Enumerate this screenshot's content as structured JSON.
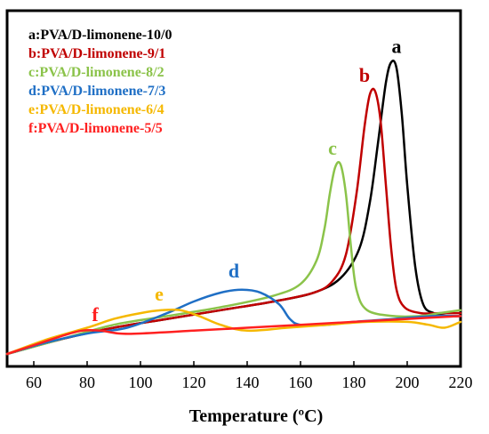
{
  "chart_data": {
    "type": "line",
    "xlabel": "Temperature (ºC)",
    "ylabel": "",
    "xlim": [
      50,
      220
    ],
    "ylim": [
      0,
      1
    ],
    "xticks": [
      60,
      80,
      100,
      120,
      140,
      160,
      180,
      200,
      220
    ],
    "grid": false,
    "legend_position": "top-left",
    "series": [
      {
        "name": "a:PVA/D-limonene-10/0",
        "label": "a",
        "color": "#000000",
        "points": [
          [
            50,
            0.0
          ],
          [
            70,
            0.05
          ],
          [
            90,
            0.09
          ],
          [
            110,
            0.12
          ],
          [
            130,
            0.15
          ],
          [
            150,
            0.18
          ],
          [
            165,
            0.21
          ],
          [
            175,
            0.26
          ],
          [
            182,
            0.36
          ],
          [
            186,
            0.52
          ],
          [
            189,
            0.72
          ],
          [
            192,
            0.93
          ],
          [
            194,
            1.0
          ],
          [
            196,
            0.98
          ],
          [
            198,
            0.82
          ],
          [
            200,
            0.58
          ],
          [
            203,
            0.3
          ],
          [
            206,
            0.17
          ],
          [
            210,
            0.14
          ],
          [
            215,
            0.13
          ],
          [
            220,
            0.13
          ]
        ]
      },
      {
        "name": "b:PVA/D-limonene-9/1",
        "label": "b",
        "color": "#c00000",
        "points": [
          [
            50,
            0.0
          ],
          [
            70,
            0.05
          ],
          [
            90,
            0.09
          ],
          [
            110,
            0.12
          ],
          [
            130,
            0.15
          ],
          [
            150,
            0.18
          ],
          [
            165,
            0.21
          ],
          [
            172,
            0.25
          ],
          [
            177,
            0.34
          ],
          [
            181,
            0.55
          ],
          [
            184,
            0.78
          ],
          [
            186,
            0.89
          ],
          [
            188,
            0.9
          ],
          [
            190,
            0.8
          ],
          [
            192,
            0.58
          ],
          [
            194,
            0.36
          ],
          [
            196,
            0.22
          ],
          [
            199,
            0.16
          ],
          [
            205,
            0.14
          ],
          [
            212,
            0.14
          ],
          [
            220,
            0.14
          ]
        ]
      },
      {
        "name": "c:PVA/D-limonene-8/2",
        "label": "c",
        "color": "#8bc34a",
        "points": [
          [
            50,
            0.0
          ],
          [
            70,
            0.05
          ],
          [
            90,
            0.1
          ],
          [
            110,
            0.13
          ],
          [
            130,
            0.16
          ],
          [
            150,
            0.2
          ],
          [
            160,
            0.24
          ],
          [
            166,
            0.32
          ],
          [
            169,
            0.43
          ],
          [
            171,
            0.55
          ],
          [
            173,
            0.64
          ],
          [
            175,
            0.65
          ],
          [
            177,
            0.55
          ],
          [
            179,
            0.36
          ],
          [
            181,
            0.22
          ],
          [
            185,
            0.15
          ],
          [
            195,
            0.13
          ],
          [
            205,
            0.13
          ],
          [
            212,
            0.14
          ],
          [
            220,
            0.15
          ]
        ]
      },
      {
        "name": "d:PVA/D-limonene-7/3",
        "label": "d",
        "color": "#1f6fc5",
        "points": [
          [
            50,
            0.0
          ],
          [
            65,
            0.04
          ],
          [
            80,
            0.07
          ],
          [
            95,
            0.09
          ],
          [
            110,
            0.14
          ],
          [
            120,
            0.18
          ],
          [
            130,
            0.21
          ],
          [
            138,
            0.22
          ],
          [
            145,
            0.21
          ],
          [
            152,
            0.17
          ],
          [
            156,
            0.12
          ],
          [
            160,
            0.1
          ],
          [
            170,
            0.1
          ],
          [
            180,
            0.11
          ],
          [
            195,
            0.12
          ],
          [
            210,
            0.13
          ],
          [
            220,
            0.13
          ]
        ]
      },
      {
        "name": "e:PVA/D-limonene-6/4",
        "label": "e",
        "color": "#f5b800",
        "points": [
          [
            50,
            0.0
          ],
          [
            65,
            0.05
          ],
          [
            80,
            0.09
          ],
          [
            90,
            0.12
          ],
          [
            100,
            0.14
          ],
          [
            108,
            0.15
          ],
          [
            115,
            0.15
          ],
          [
            122,
            0.13
          ],
          [
            130,
            0.1
          ],
          [
            140,
            0.08
          ],
          [
            155,
            0.09
          ],
          [
            170,
            0.1
          ],
          [
            185,
            0.11
          ],
          [
            200,
            0.11
          ],
          [
            208,
            0.1
          ],
          [
            214,
            0.09
          ],
          [
            220,
            0.11
          ]
        ]
      },
      {
        "name": "f:PVA/D-limonene-5/5",
        "label": "f",
        "color": "#ff2020",
        "points": [
          [
            50,
            0.0
          ],
          [
            60,
            0.03
          ],
          [
            70,
            0.06
          ],
          [
            78,
            0.08
          ],
          [
            85,
            0.08
          ],
          [
            92,
            0.07
          ],
          [
            100,
            0.07
          ],
          [
            120,
            0.08
          ],
          [
            140,
            0.09
          ],
          [
            160,
            0.1
          ],
          [
            180,
            0.11
          ],
          [
            200,
            0.12
          ],
          [
            220,
            0.13
          ]
        ]
      }
    ],
    "annotations": [
      {
        "text": "a",
        "x": 196,
        "y": 1.02,
        "color": "#000000"
      },
      {
        "text": "b",
        "x": 184,
        "y": 0.92,
        "color": "#c00000"
      },
      {
        "text": "c",
        "x": 172,
        "y": 0.67,
        "color": "#8bc34a"
      },
      {
        "text": "d",
        "x": 135,
        "y": 0.25,
        "color": "#1f6fc5"
      },
      {
        "text": "e",
        "x": 107,
        "y": 0.17,
        "color": "#f5b800"
      },
      {
        "text": "f",
        "x": 83,
        "y": 0.1,
        "color": "#ff2020"
      }
    ]
  }
}
